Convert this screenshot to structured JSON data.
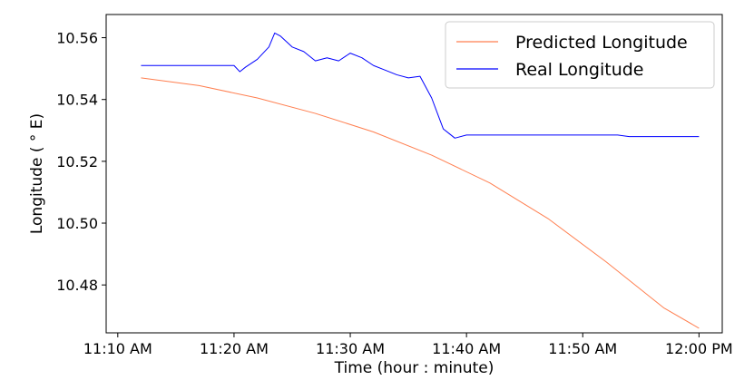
{
  "chart_data": {
    "type": "line",
    "xlabel": "Time (hour : minute)",
    "ylabel": "Longitude ( ° E)",
    "x_unit": "time of day",
    "xlim": [
      "11:09",
      "12:02"
    ],
    "ylim": [
      10.4645,
      10.5675
    ],
    "x_ticks": [
      {
        "value": "11:10",
        "label": "11:10 AM"
      },
      {
        "value": "11:20",
        "label": "11:20 AM"
      },
      {
        "value": "11:30",
        "label": "11:30 AM"
      },
      {
        "value": "11:40",
        "label": "11:40 AM"
      },
      {
        "value": "11:50",
        "label": "11:50 AM"
      },
      {
        "value": "12:00",
        "label": "12:00 PM"
      }
    ],
    "y_ticks": [
      {
        "value": 10.48,
        "label": "10.48"
      },
      {
        "value": 10.5,
        "label": "10.50"
      },
      {
        "value": 10.52,
        "label": "10.52"
      },
      {
        "value": 10.54,
        "label": "10.54"
      },
      {
        "value": 10.56,
        "label": "10.56"
      }
    ],
    "grid": false,
    "legend_position": "top-right",
    "series": [
      {
        "name": "Predicted Longitude",
        "color": "#ff7f50",
        "x": [
          "11:12",
          "11:17",
          "11:22",
          "11:27",
          "11:32",
          "11:37",
          "11:42",
          "11:47",
          "11:52",
          "11:57",
          "12:00"
        ],
        "y": [
          10.547,
          10.5445,
          10.5405,
          10.5355,
          10.5295,
          10.522,
          10.513,
          10.5015,
          10.4875,
          10.4725,
          10.466
        ]
      },
      {
        "name": "Real Longitude",
        "color": "#0000ff",
        "x": [
          "11:12",
          "11:15",
          "11:18",
          "11:20",
          "11:20.5",
          "11:21",
          "11:22",
          "11:23",
          "11:23.5",
          "11:24",
          "11:25",
          "11:26",
          "11:27",
          "11:28",
          "11:29",
          "11:30",
          "11:31",
          "11:32",
          "11:33",
          "11:34",
          "11:35",
          "11:36",
          "11:37",
          "11:38",
          "11:38.5",
          "11:39",
          "11:40",
          "11:45",
          "11:50",
          "11:53",
          "11:54",
          "11:57",
          "12:00"
        ],
        "y": [
          10.551,
          10.551,
          10.551,
          10.551,
          10.549,
          10.5505,
          10.553,
          10.557,
          10.5615,
          10.5605,
          10.557,
          10.5555,
          10.5525,
          10.5535,
          10.5525,
          10.555,
          10.5535,
          10.551,
          10.5495,
          10.548,
          10.547,
          10.5475,
          10.5405,
          10.5305,
          10.529,
          10.5275,
          10.5285,
          10.5285,
          10.5285,
          10.5285,
          10.528,
          10.528,
          10.528
        ]
      }
    ]
  }
}
